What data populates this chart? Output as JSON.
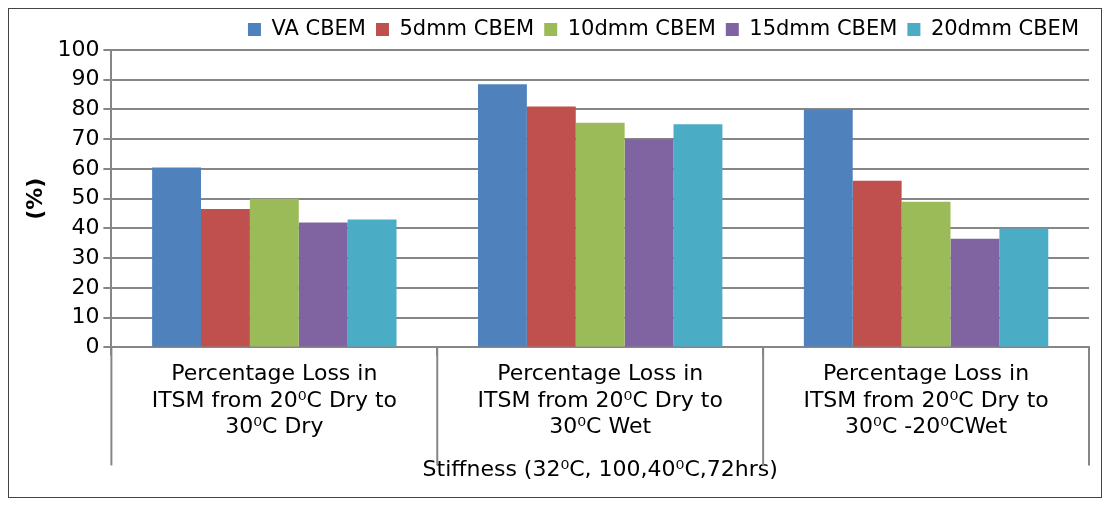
{
  "chart_data": {
    "type": "bar",
    "xlabel": "Stiffness (32⁰C, 100,40⁰C,72hrs)",
    "ylabel": "(%)",
    "categories": [
      "Percentage Loss in ITSM from 20⁰C Dry to 30⁰C Dry",
      "Percentage Loss in ITSM from 20⁰C Dry to 30⁰C Wet",
      "Percentage Loss in ITSM from 20⁰C Dry to 30⁰C -20⁰CWet"
    ],
    "series": [
      {
        "name": "VA CBEM",
        "color": "#4f81bd",
        "values": [
          60.5,
          88.5,
          80
        ]
      },
      {
        "name": "5dmm CBEM",
        "color": "#c0504d",
        "values": [
          46.5,
          81,
          56
        ]
      },
      {
        "name": "10dmm CBEM",
        "color": "#9bbb59",
        "values": [
          50,
          75.5,
          49
        ]
      },
      {
        "name": "15dmm CBEM",
        "color": "#8064a2",
        "values": [
          42,
          70,
          36.5
        ]
      },
      {
        "name": "20dmm CBEM",
        "color": "#4bacc6",
        "values": [
          43,
          75,
          40
        ]
      }
    ],
    "ylim": [
      0,
      100
    ],
    "yticks": [
      0,
      10,
      20,
      30,
      40,
      50,
      60,
      70,
      80,
      90,
      100
    ],
    "grid": "y",
    "legend": "top"
  }
}
